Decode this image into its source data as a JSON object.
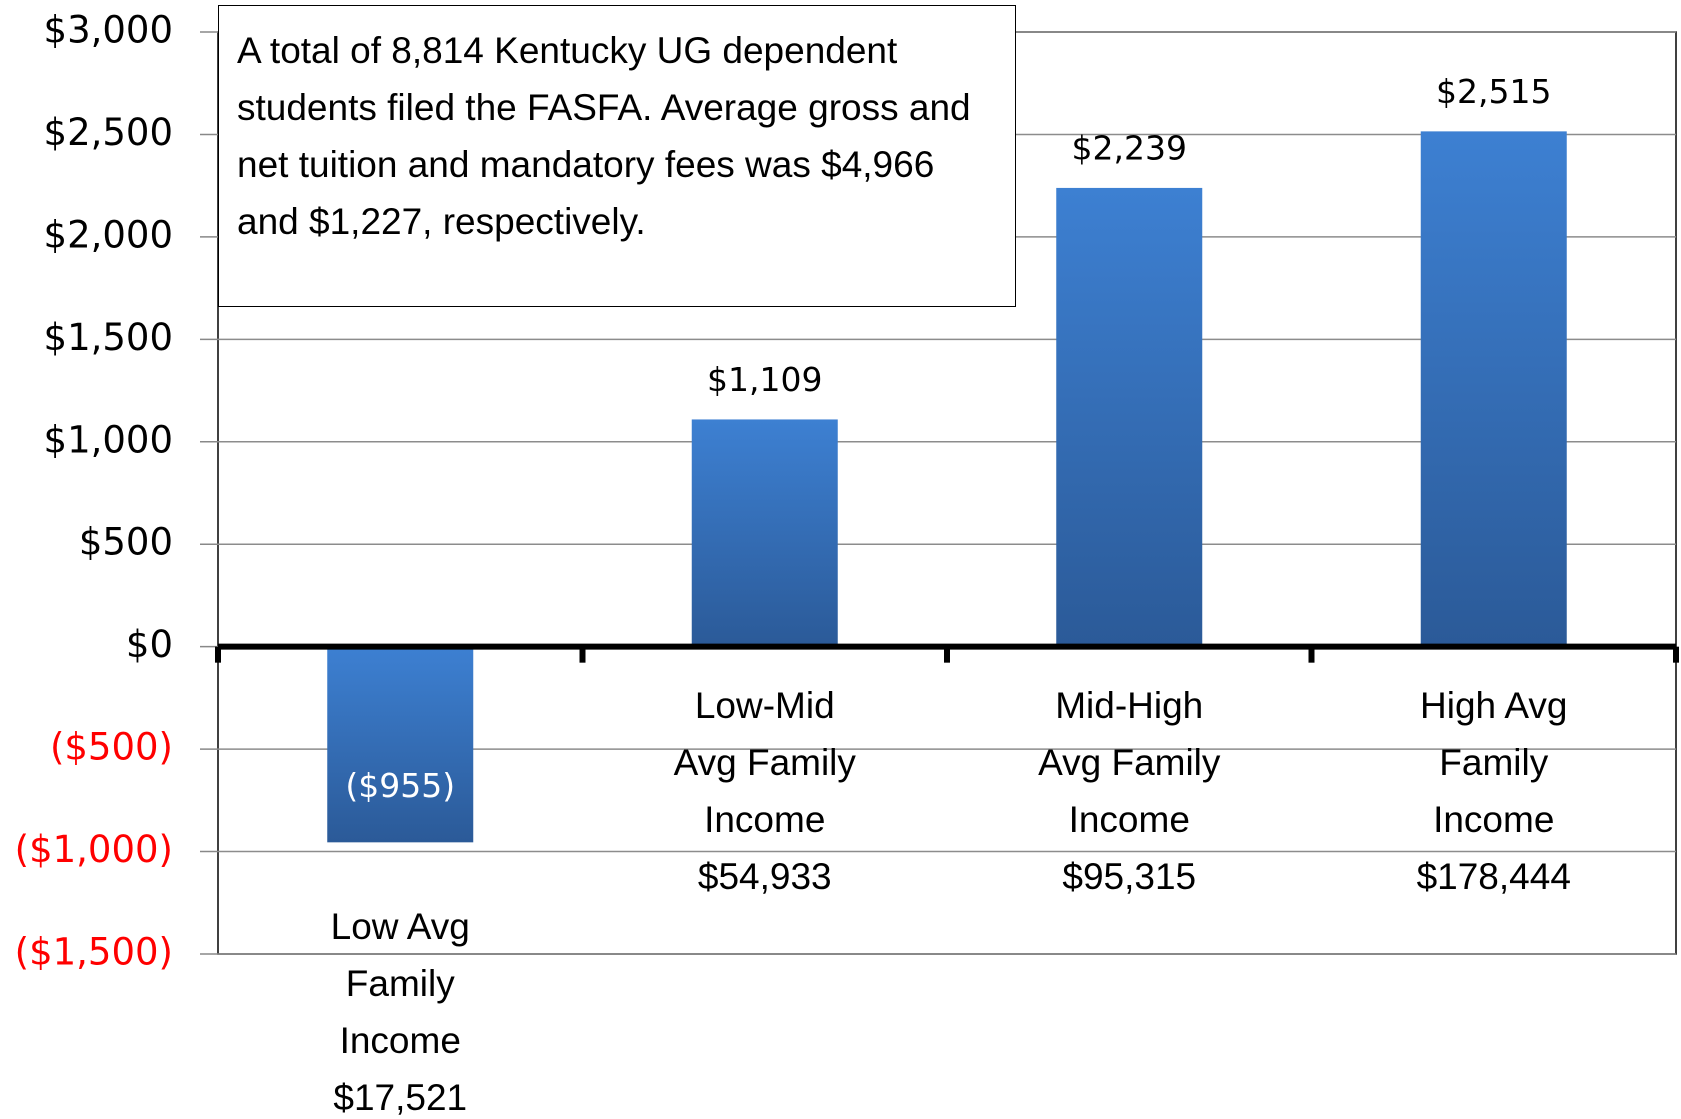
{
  "chart_data": {
    "type": "bar",
    "annotation": "A total of 8,814 Kentucky UG dependent students filed the FASFA. Average gross and net tuition and mandatory fees was $4,966 and $1,227, respectively.",
    "categories": [
      "Low Avg Family Income $17,521",
      "Low-Mid Avg Family Income $54,933",
      "Mid-High Avg Family Income $95,315",
      "High Avg Family Income $178,444"
    ],
    "values": [
      -955,
      1109,
      2239,
      2515
    ],
    "value_labels": [
      "($955)",
      "$1,109",
      "$2,239",
      "$2,515"
    ],
    "color": "#3a78c6",
    "ylim": [
      -1500,
      3000
    ],
    "yticks": [
      {
        "value": -1500,
        "label": "($1,500)"
      },
      {
        "value": -1000,
        "label": "($1,000)"
      },
      {
        "value": -500,
        "label": "($500)"
      },
      {
        "value": 0,
        "label": "$0"
      },
      {
        "value": 500,
        "label": "$500"
      },
      {
        "value": 1000,
        "label": "$1,000"
      },
      {
        "value": 1500,
        "label": "$1,500"
      },
      {
        "value": 2000,
        "label": "$2,000"
      },
      {
        "value": 2500,
        "label": "$2,500"
      },
      {
        "value": 3000,
        "label": "$3,000"
      }
    ],
    "grid": true
  }
}
